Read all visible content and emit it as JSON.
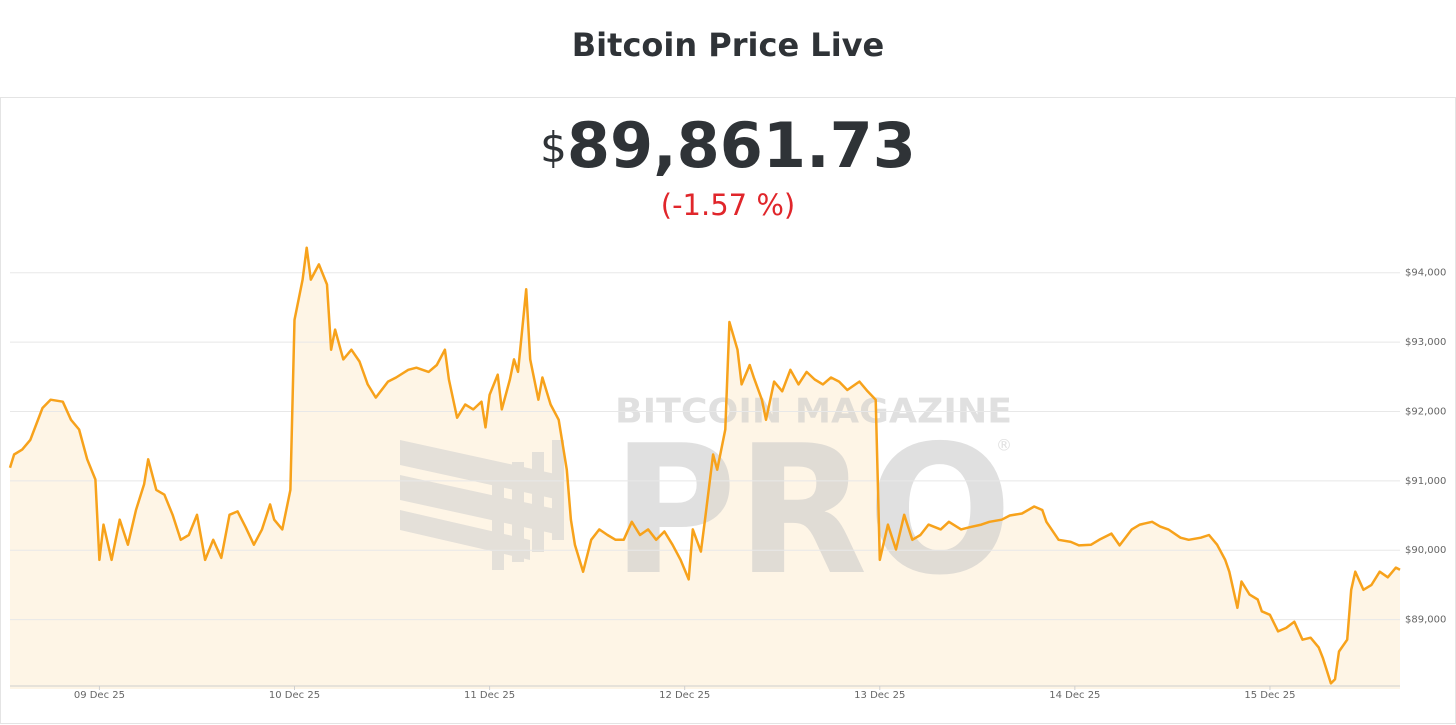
{
  "chart_data": {
    "type": "line",
    "title": "Bitcoin Price Live",
    "currency": "$",
    "price": "89,861.73",
    "change": "(-1.57 %)",
    "watermark": {
      "top": "BITCOIN MAGAZINE",
      "main": "PRO",
      "mark": "®"
    },
    "color": "#f7a21b",
    "fill": "#fef5e6",
    "grid": true,
    "xlim": [
      "2025-12-08 13:00",
      "2025-12-15 16:00"
    ],
    "ylim": [
      88000,
      94500
    ],
    "xticks": [
      {
        "value": "2025-12-09 00:00",
        "label": "09 Dec 25"
      },
      {
        "value": "2025-12-10 00:00",
        "label": "10 Dec 25"
      },
      {
        "value": "2025-12-11 00:00",
        "label": "11 Dec 25"
      },
      {
        "value": "2025-12-12 00:00",
        "label": "12 Dec 25"
      },
      {
        "value": "2025-12-13 00:00",
        "label": "13 Dec 25"
      },
      {
        "value": "2025-12-14 00:00",
        "label": "14 Dec 25"
      },
      {
        "value": "2025-12-15 00:00",
        "label": "15 Dec 25"
      }
    ],
    "yticks": [
      {
        "value": 89000,
        "label": "$89,000"
      },
      {
        "value": 90000,
        "label": "$90,000"
      },
      {
        "value": 91000,
        "label": "$91,000"
      },
      {
        "value": 92000,
        "label": "$92,000"
      },
      {
        "value": 93000,
        "label": "$93,000"
      },
      {
        "value": 94000,
        "label": "$94,000"
      }
    ],
    "x": [
      "2025-12-08 13:00",
      "2025-12-08 13:30",
      "2025-12-08 14:30",
      "2025-12-08 15:30",
      "2025-12-08 17:00",
      "2025-12-08 18:00",
      "2025-12-08 19:30",
      "2025-12-08 20:30",
      "2025-12-08 21:30",
      "2025-12-08 22:30",
      "2025-12-08 23:30",
      "2025-12-09 00:00",
      "2025-12-09 00:30",
      "2025-12-09 01:30",
      "2025-12-09 02:30",
      "2025-12-09 03:30",
      "2025-12-09 04:30",
      "2025-12-09 05:30",
      "2025-12-09 06:00",
      "2025-12-09 07:00",
      "2025-12-09 08:00",
      "2025-12-09 09:00",
      "2025-12-09 10:00",
      "2025-12-09 11:00",
      "2025-12-09 12:00",
      "2025-12-09 13:00",
      "2025-12-09 14:00",
      "2025-12-09 15:00",
      "2025-12-09 16:00",
      "2025-12-09 17:00",
      "2025-12-09 18:00",
      "2025-12-09 19:00",
      "2025-12-09 20:00",
      "2025-12-09 21:00",
      "2025-12-09 21:30",
      "2025-12-09 22:30",
      "2025-12-09 23:30",
      "2025-12-10 00:00",
      "2025-12-10 01:00",
      "2025-12-10 01:30",
      "2025-12-10 02:00",
      "2025-12-10 03:00",
      "2025-12-10 04:00",
      "2025-12-10 04:30",
      "2025-12-10 05:00",
      "2025-12-10 06:00",
      "2025-12-10 07:00",
      "2025-12-10 08:00",
      "2025-12-10 09:00",
      "2025-12-10 10:00",
      "2025-12-10 11:30",
      "2025-12-10 12:30",
      "2025-12-10 14:00",
      "2025-12-10 15:00",
      "2025-12-10 16:30",
      "2025-12-10 17:30",
      "2025-12-10 18:30",
      "2025-12-10 19:00",
      "2025-12-10 20:00",
      "2025-12-10 21:00",
      "2025-12-10 22:00",
      "2025-12-10 23:00",
      "2025-12-10 23:30",
      "2025-12-11 00:00",
      "2025-12-11 01:00",
      "2025-12-11 01:30",
      "2025-12-11 02:30",
      "2025-12-11 03:00",
      "2025-12-11 03:30",
      "2025-12-11 04:30",
      "2025-12-11 05:00",
      "2025-12-11 06:00",
      "2025-12-11 06:30",
      "2025-12-11 07:30",
      "2025-12-11 08:30",
      "2025-12-11 09:30",
      "2025-12-11 10:00",
      "2025-12-11 10:30",
      "2025-12-11 11:30",
      "2025-12-11 12:30",
      "2025-12-11 13:30",
      "2025-12-11 14:30",
      "2025-12-11 15:30",
      "2025-12-11 16:30",
      "2025-12-11 17:30",
      "2025-12-11 18:30",
      "2025-12-11 19:30",
      "2025-12-11 20:30",
      "2025-12-11 21:30",
      "2025-12-11 22:30",
      "2025-12-11 23:30",
      "2025-12-12 00:30",
      "2025-12-12 01:00",
      "2025-12-12 02:00",
      "2025-12-12 02:30",
      "2025-12-12 03:30",
      "2025-12-12 04:00",
      "2025-12-12 05:00",
      "2025-12-12 05:30",
      "2025-12-12 06:30",
      "2025-12-12 07:00",
      "2025-12-12 08:00",
      "2025-12-12 08:30",
      "2025-12-12 09:30",
      "2025-12-12 10:00",
      "2025-12-12 11:00",
      "2025-12-12 12:00",
      "2025-12-12 13:00",
      "2025-12-12 14:00",
      "2025-12-12 15:00",
      "2025-12-12 16:00",
      "2025-12-12 17:00",
      "2025-12-12 18:00",
      "2025-12-12 19:00",
      "2025-12-12 20:00",
      "2025-12-12 21:30",
      "2025-12-12 22:30",
      "2025-12-12 23:30",
      "2025-12-13 00:00",
      "2025-12-13 01:00",
      "2025-12-13 02:00",
      "2025-12-13 03:00",
      "2025-12-13 04:00",
      "2025-12-13 05:00",
      "2025-12-13 06:00",
      "2025-12-13 07:30",
      "2025-12-13 08:30",
      "2025-12-13 10:00",
      "2025-12-13 11:00",
      "2025-12-13 12:30",
      "2025-12-13 13:30",
      "2025-12-13 15:00",
      "2025-12-13 16:00",
      "2025-12-13 17:30",
      "2025-12-13 19:00",
      "2025-12-13 20:00",
      "2025-12-13 20:30",
      "2025-12-13 22:00",
      "2025-12-13 23:30",
      "2025-12-14 00:30",
      "2025-12-14 02:00",
      "2025-12-14 03:00",
      "2025-12-14 04:30",
      "2025-12-14 05:30",
      "2025-12-14 07:00",
      "2025-12-14 08:00",
      "2025-12-14 09:30",
      "2025-12-14 10:30",
      "2025-12-14 11:30",
      "2025-12-14 13:00",
      "2025-12-14 14:00",
      "2025-12-14 15:30",
      "2025-12-14 16:30",
      "2025-12-14 17:30",
      "2025-12-14 18:30",
      "2025-12-14 19:00",
      "2025-12-14 20:00",
      "2025-12-14 20:30",
      "2025-12-14 21:30",
      "2025-12-14 22:30",
      "2025-12-14 23:00",
      "2025-12-15 00:00",
      "2025-12-15 01:00",
      "2025-12-15 02:00",
      "2025-12-15 03:00",
      "2025-12-15 04:00",
      "2025-12-15 05:00",
      "2025-12-15 06:00",
      "2025-12-15 06:30",
      "2025-12-15 07:30",
      "2025-12-15 08:00",
      "2025-12-15 08:30",
      "2025-12-15 09:30",
      "2025-12-15 10:00",
      "2025-12-15 10:30",
      "2025-12-15 11:30",
      "2025-12-15 12:30",
      "2025-12-15 13:30",
      "2025-12-15 14:30",
      "2025-12-15 15:30",
      "2025-12-15 16:00"
    ],
    "values": [
      91190,
      91380,
      91450,
      91590,
      92050,
      92170,
      92140,
      91880,
      91740,
      91310,
      91020,
      89860,
      90370,
      89860,
      90440,
      90080,
      90580,
      90950,
      91310,
      90870,
      90800,
      90510,
      90150,
      90220,
      90510,
      89860,
      90150,
      89890,
      90510,
      90560,
      90330,
      90080,
      90300,
      90660,
      90440,
      90300,
      90870,
      93320,
      93900,
      94360,
      93900,
      94120,
      93830,
      92890,
      93180,
      92750,
      92890,
      92720,
      92390,
      92200,
      92430,
      92490,
      92600,
      92630,
      92570,
      92670,
      92890,
      92460,
      91910,
      92100,
      92030,
      92140,
      91770,
      92240,
      92530,
      92030,
      92460,
      92750,
      92570,
      93760,
      92750,
      92170,
      92490,
      92100,
      91880,
      91160,
      90440,
      90080,
      89690,
      90150,
      90300,
      90220,
      90150,
      90150,
      90410,
      90220,
      90300,
      90150,
      90270,
      90080,
      89860,
      89580,
      90300,
      89980,
      90440,
      91380,
      91160,
      91740,
      93290,
      92890,
      92390,
      92670,
      92490,
      92170,
      91880,
      92430,
      92290,
      92600,
      92390,
      92570,
      92460,
      92390,
      92490,
      92430,
      92310,
      92430,
      92290,
      92170,
      89860,
      90370,
      90010,
      90510,
      90150,
      90220,
      90370,
      90300,
      90410,
      90300,
      90330,
      90370,
      90410,
      90440,
      90500,
      90530,
      90630,
      90580,
      90410,
      90150,
      90120,
      90070,
      90080,
      90150,
      90240,
      90070,
      90300,
      90370,
      90410,
      90340,
      90300,
      90180,
      90150,
      90180,
      90220,
      90080,
      89860,
      89690,
      89170,
      89550,
      89360,
      89290,
      89120,
      89070,
      88830,
      88880,
      88970,
      88710,
      88740,
      88600,
      88450,
      88080,
      88140,
      88540,
      88710,
      89430,
      89690,
      89430,
      89500,
      89690,
      89610,
      89750,
      89720
    ]
  }
}
